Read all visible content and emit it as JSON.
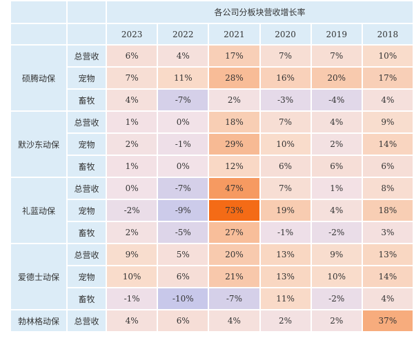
{
  "chart_data": {
    "type": "heatmap",
    "title": "各公司分板块营收增长率",
    "years": [
      "2023",
      "2022",
      "2021",
      "2020",
      "2019",
      "2018"
    ],
    "companies": [
      {
        "name": "硕腾动保",
        "rows": [
          {
            "segment": "总营收",
            "values": [
              "6%",
              "4%",
              "17%",
              "7%",
              "7%",
              "10%"
            ]
          },
          {
            "segment": "宠物",
            "values": [
              "7%",
              "11%",
              "28%",
              "16%",
              "20%",
              "17%"
            ]
          },
          {
            "segment": "畜牧",
            "values": [
              "4%",
              "-7%",
              "2%",
              "-3%",
              "-4%",
              "4%"
            ]
          }
        ]
      },
      {
        "name": "默沙东动保",
        "rows": [
          {
            "segment": "总营收",
            "values": [
              "1%",
              "0%",
              "18%",
              "7%",
              "4%",
              "9%"
            ]
          },
          {
            "segment": "宠物",
            "values": [
              "2%",
              "-1%",
              "29%",
              "10%",
              "2%",
              "14%"
            ]
          },
          {
            "segment": "畜牧",
            "values": [
              "1%",
              "0%",
              "12%",
              "6%",
              "6%",
              "6%"
            ]
          }
        ]
      },
      {
        "name": "礼蓝动保",
        "rows": [
          {
            "segment": "总营收",
            "values": [
              "0%",
              "-7%",
              "47%",
              "7%",
              "1%",
              "8%"
            ]
          },
          {
            "segment": "宠物",
            "values": [
              "-2%",
              "-9%",
              "73%",
              "19%",
              "4%",
              "18%"
            ]
          },
          {
            "segment": "畜牧",
            "values": [
              "2%",
              "-5%",
              "27%",
              "-1%",
              "-2%",
              "3%"
            ]
          }
        ]
      },
      {
        "name": "爱德士动保",
        "rows": [
          {
            "segment": "总营收",
            "values": [
              "9%",
              "5%",
              "20%",
              "13%",
              "9%",
              "13%"
            ]
          },
          {
            "segment": "宠物",
            "values": [
              "10%",
              "6%",
              "21%",
              "13%",
              "10%",
              "14%"
            ]
          },
          {
            "segment": "畜牧",
            "values": [
              "-1%",
              "-10%",
              "-7%",
              "11%",
              "-2%",
              "4%"
            ]
          }
        ]
      },
      {
        "name": "勃林格动保",
        "rows": [
          {
            "segment": "总营收",
            "values": [
              "4%",
              "6%",
              "4%",
              "2%",
              "2%",
              "37%"
            ]
          }
        ]
      }
    ],
    "color_scale": {
      "negative": "#c8c8ea",
      "zero": "#f2e2e8",
      "low_positive": "#f9dccb",
      "high_positive": "#f46b16"
    }
  }
}
